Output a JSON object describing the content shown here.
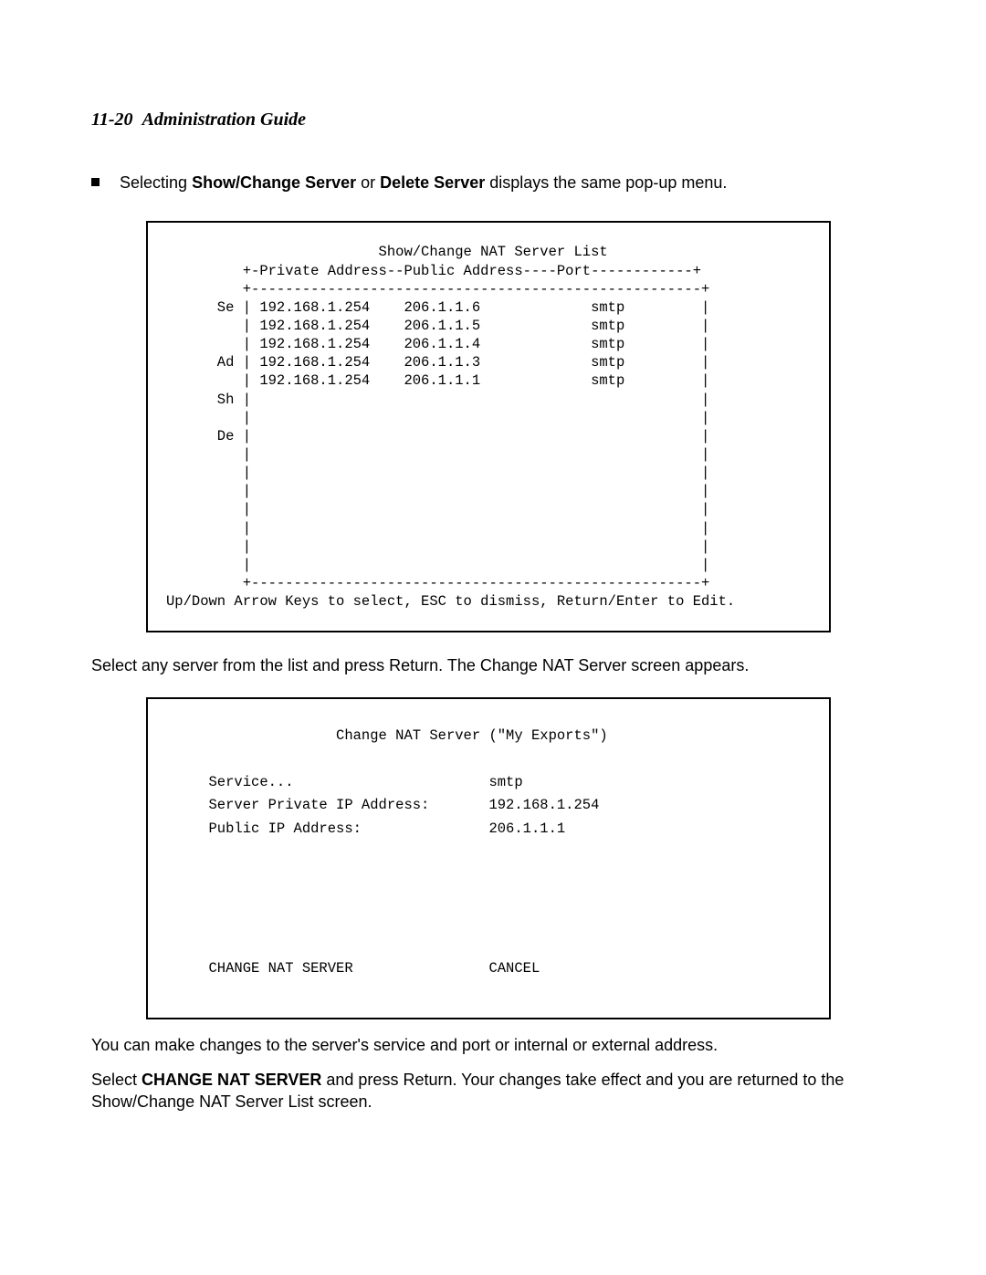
{
  "header": {
    "page_ref": "11-20",
    "title": "Administration Guide"
  },
  "bullet": {
    "pre": "Selecting ",
    "b1": "Show/Change Server",
    "mid": " or ",
    "b2": "Delete Server",
    "post": " displays the same pop-up menu."
  },
  "term1": {
    "title_line": "                         Show/Change NAT Server List",
    "header_line": "         +-Private Address--Public Address----Port------------+",
    "sep_top": "         +-----------------------------------------------------+",
    "r1": "      Se | 192.168.1.254    206.1.1.6             smtp         |",
    "r2": "         | 192.168.1.254    206.1.1.5             smtp         |",
    "r3": "         | 192.168.1.254    206.1.1.4             smtp         |",
    "r4": "      Ad | 192.168.1.254    206.1.1.3             smtp         |",
    "r5": "         | 192.168.1.254    206.1.1.1             smtp         |",
    "r6": "      Sh |                                                     |",
    "r7": "         |                                                     |",
    "r8": "      De |                                                     |",
    "r9": "         |                                                     |",
    "r10": "         |                                                     |",
    "r11": "         |                                                     |",
    "r12": "         |                                                     |",
    "r13": "         |                                                     |",
    "r14": "         |                                                     |",
    "r15": "         |                                                     |",
    "sep_bot": "         +-----------------------------------------------------+",
    "help": "Up/Down Arrow Keys to select, ESC to dismiss, Return/Enter to Edit."
  },
  "mid_p": "Select any server from the list and press Return. The Change NAT Server screen appears.",
  "term2": {
    "title": "                    Change NAT Server (\"My Exports\")",
    "blank": "",
    "l1": "     Service...                       smtp",
    "l2": "     Server Private IP Address:       192.168.1.254",
    "l3": "     Public IP Address:               206.1.1.1",
    "gap1": "",
    "gap2": "",
    "gap3": "",
    "gap4": "",
    "gap5": "",
    "actions": "     CHANGE NAT SERVER                CANCEL"
  },
  "p_after1": "You can make changes to the server's service and port or internal or external address.",
  "p_after2": {
    "pre": "Select ",
    "b": "CHANGE NAT SERVER",
    "post": " and press Return. Your changes take effect and you are returned to the Show/Change NAT Server List screen."
  }
}
